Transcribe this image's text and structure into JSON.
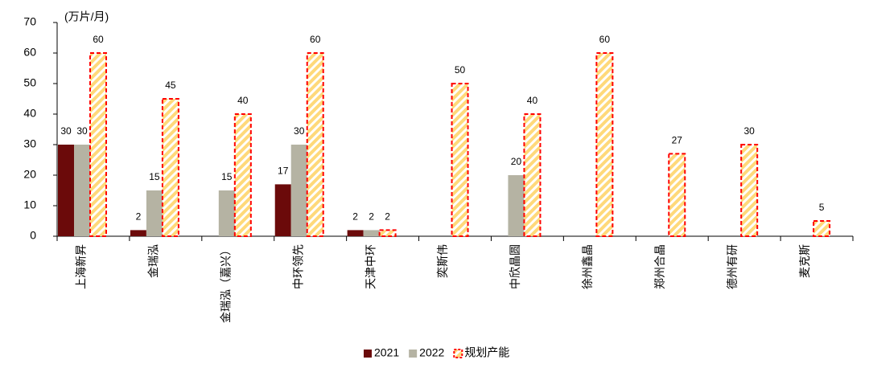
{
  "chart_data": {
    "type": "bar",
    "y_label": "(万片/月)",
    "categories": [
      "上海新昇",
      "金瑞泓",
      "金瑞泓（嘉兴）",
      "中环领先",
      "天津中环",
      "奕斯伟",
      "中欣晶圆",
      "徐州鑫晶",
      "郑州合晶",
      "德州有研",
      "麦克斯"
    ],
    "series": [
      {
        "name": "2021",
        "color": "#6b0a0a",
        "values": [
          30,
          2,
          null,
          17,
          2,
          null,
          null,
          null,
          null,
          null,
          null
        ]
      },
      {
        "name": "2022",
        "color": "#b5b3a3",
        "values": [
          30,
          15,
          15,
          30,
          2,
          null,
          20,
          null,
          null,
          null,
          null
        ]
      },
      {
        "name": "规划产能",
        "color": "#ff0000",
        "hatch": "#ffd97a",
        "values": [
          60,
          45,
          40,
          60,
          2,
          50,
          40,
          60,
          27,
          30,
          5
        ]
      }
    ],
    "ylim": [
      0,
      70
    ],
    "yticks": [
      0,
      10,
      20,
      30,
      40,
      50,
      60,
      70
    ],
    "legend": "bottom"
  }
}
